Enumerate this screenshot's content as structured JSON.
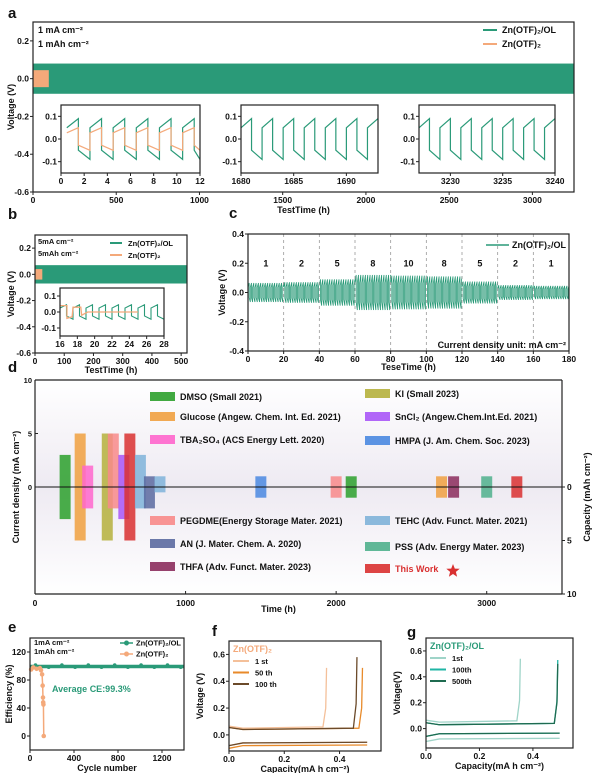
{
  "chart_data": [
    {
      "id": "a",
      "type": "line",
      "panel_label": "a",
      "annotations": [
        "1 mA cm⁻²",
        "1 mAh cm⁻²"
      ],
      "xlabel": "TestTime (h)",
      "ylabel": "Voltage (V)",
      "xlim": [
        0,
        3250
      ],
      "ylim": [
        -0.6,
        0.3
      ],
      "xticks": [
        0,
        500,
        1000,
        1500,
        2000,
        2500,
        3000
      ],
      "yticks": [
        -0.6,
        -0.4,
        -0.2,
        0.0,
        0.2
      ],
      "legend": {
        "position": "top-right",
        "entries": [
          {
            "name": "Zn(OTF)₂/OL",
            "color": "#2a9a78"
          },
          {
            "name": "Zn(OTF)₂",
            "color": "#f4a97a"
          }
        ]
      },
      "series": [
        {
          "name": "Zn(OTF)₂/OL",
          "color": "#2a9a78",
          "x_range": [
            0,
            3250
          ],
          "band_upper": 0.08,
          "band_lower": -0.08
        },
        {
          "name": "Zn(OTF)₂",
          "color": "#f4a97a",
          "x_range": [
            0,
            95
          ],
          "band_upper": 0.045,
          "band_lower": -0.045
        }
      ],
      "insets": [
        {
          "xlim": [
            0,
            12
          ],
          "ylim": [
            -0.15,
            0.15
          ],
          "xticks": [
            0,
            2,
            4,
            6,
            8,
            10,
            12
          ],
          "yticks": [
            -0.1,
            0.0,
            0.1
          ],
          "series": [
            "Zn(OTF)₂/OL",
            "Zn(OTF)₂"
          ]
        },
        {
          "xlim": [
            1680,
            1693
          ],
          "ylim": [
            -0.15,
            0.15
          ],
          "xticks": [
            1680,
            1685,
            1690
          ],
          "yticks": [
            -0.1,
            0.0,
            0.1
          ],
          "series": [
            "Zn(OTF)₂/OL"
          ]
        },
        {
          "xlim": [
            3227,
            3240
          ],
          "ylim": [
            -0.15,
            0.15
          ],
          "xticks": [
            3230,
            3235,
            3240
          ],
          "yticks": [
            -0.1,
            0.0,
            0.1
          ],
          "series": [
            "Zn(OTF)₂/OL"
          ]
        }
      ]
    },
    {
      "id": "b",
      "type": "line",
      "panel_label": "b",
      "annotations": [
        "5mA cm⁻²",
        "5mAh cm⁻²"
      ],
      "xlabel": "TestTime (h)",
      "ylabel": "Voltage (V)",
      "xlim": [
        0,
        520
      ],
      "ylim": [
        -0.6,
        0.3
      ],
      "xticks": [
        0,
        100,
        200,
        300,
        400,
        500
      ],
      "yticks": [
        -0.6,
        -0.4,
        -0.2,
        0.0,
        0.2
      ],
      "legend": {
        "position": "top-right",
        "entries": [
          {
            "name": "Zn(OTF)₂/OL",
            "color": "#2a9a78"
          },
          {
            "name": "Zn(OTF)₂",
            "color": "#f4a97a"
          }
        ]
      },
      "series": [
        {
          "name": "Zn(OTF)₂/OL",
          "color": "#2a9a78",
          "x_range": [
            0,
            520
          ],
          "band_upper": 0.07,
          "band_lower": -0.07
        },
        {
          "name": "Zn(OTF)₂",
          "color": "#f4a97a",
          "x_range": [
            0,
            25
          ],
          "band_upper": 0.04,
          "band_lower": -0.04
        }
      ],
      "insets": [
        {
          "xlim": [
            16,
            28
          ],
          "ylim": [
            -0.15,
            0.15
          ],
          "xticks": [
            16,
            18,
            20,
            22,
            24,
            26,
            28
          ],
          "yticks": [
            -0.1,
            0.0,
            0.1
          ],
          "series": [
            "Zn(OTF)₂/OL",
            "Zn(OTF)₂"
          ]
        }
      ]
    },
    {
      "id": "c",
      "type": "line",
      "panel_label": "c",
      "xlabel": "TeseTime (h)",
      "ylabel": "Voltage (V)",
      "xlim": [
        0,
        180
      ],
      "ylim": [
        -0.4,
        0.4
      ],
      "xticks": [
        0,
        20,
        40,
        60,
        80,
        100,
        120,
        140,
        160,
        180
      ],
      "yticks": [
        -0.4,
        -0.2,
        0.0,
        0.2,
        0.4
      ],
      "legend": {
        "position": "top-right",
        "entries": [
          {
            "name": "Zn(OTF)₂/OL",
            "color": "#2a9a78"
          }
        ]
      },
      "annotation": "Current density unit: mA cm⁻²",
      "segments": [
        {
          "x_range": [
            0,
            20
          ],
          "current_density": "1",
          "amplitude": 0.065
        },
        {
          "x_range": [
            20,
            40
          ],
          "current_density": "2",
          "amplitude": 0.07
        },
        {
          "x_range": [
            40,
            60
          ],
          "current_density": "5",
          "amplitude": 0.09
        },
        {
          "x_range": [
            60,
            80
          ],
          "current_density": "8",
          "amplitude": 0.12
        },
        {
          "x_range": [
            80,
            100
          ],
          "current_density": "10",
          "amplitude": 0.115
        },
        {
          "x_range": [
            100,
            120
          ],
          "current_density": "8",
          "amplitude": 0.11
        },
        {
          "x_range": [
            120,
            140
          ],
          "current_density": "5",
          "amplitude": 0.075
        },
        {
          "x_range": [
            140,
            160
          ],
          "current_density": "2",
          "amplitude": 0.05
        },
        {
          "x_range": [
            160,
            180
          ],
          "current_density": "1",
          "amplitude": 0.045
        }
      ]
    },
    {
      "id": "d",
      "type": "bar",
      "panel_label": "d",
      "xlabel": "Time (h)",
      "ylabel": "Current density (mA cm⁻²)",
      "ylabel_right": "Capacity (mAh cm⁻²)",
      "xlim": [
        0,
        3500
      ],
      "xticks": [
        0,
        1000,
        2000,
        3000
      ],
      "ylim_left": [
        -10,
        10
      ],
      "yticks_left": [
        0,
        5,
        10
      ],
      "yticks_right": [
        0,
        5,
        10
      ],
      "note": "Bars extend upward by current density (left axis) and downward by areal capacity (right axis)",
      "legend": [
        {
          "name": "DMSO (Small 2021)",
          "color": "#2ca02c"
        },
        {
          "name": "Glucose (Angew. Chem. Int. Ed. 2021)",
          "color": "#f0a040"
        },
        {
          "name": "TBA₂SO₄ (ACS Energy Lett. 2020)",
          "color": "#ff66cc"
        },
        {
          "name": "KI (Small 2023)",
          "color": "#b5b03c"
        },
        {
          "name": "SnCl₂ (Angew.Chem.Int.Ed. 2021)",
          "color": "#a855f7"
        },
        {
          "name": "HMPA (J. Am. Chem. Soc. 2023)",
          "color": "#4a88e0"
        },
        {
          "name": "PEGDME(Energy Storage Mater. 2021)",
          "color": "#f88a8a"
        },
        {
          "name": "AN (J. Mater. Chem. A. 2020)",
          "color": "#5b6aa0"
        },
        {
          "name": "THFA (Adv. Funct. Mater. 2023)",
          "color": "#8b2c5c"
        },
        {
          "name": "TEHC (Adv. Funct. Mater. 2021)",
          "color": "#7fb3d9"
        },
        {
          "name": "PSS (Adv. Energy Mater. 2023)",
          "color": "#4fb08c"
        },
        {
          "name": "This Work",
          "color": "#d93030"
        }
      ],
      "bars": [
        {
          "name": "DMSO",
          "time": 200,
          "current": 3,
          "capacity": 3
        },
        {
          "name": "Glucose",
          "time": 300,
          "current": 5,
          "capacity": 5
        },
        {
          "name": "TBA₂SO₄",
          "time": 350,
          "current": 2,
          "capacity": 2
        },
        {
          "name": "KI",
          "time": 480,
          "current": 5,
          "capacity": 5
        },
        {
          "name": "PEGDME",
          "time": 520,
          "current": 5,
          "capacity": 2
        },
        {
          "name": "SnCl₂",
          "time": 590,
          "current": 3,
          "capacity": 3
        },
        {
          "name": "This Work (short)",
          "time": 630,
          "current": 5,
          "capacity": 5
        },
        {
          "name": "TEHC",
          "time": 700,
          "current": 3,
          "capacity": 2
        },
        {
          "name": "AN",
          "time": 760,
          "current": 1,
          "capacity": 2
        },
        {
          "name": "TEHC (long)",
          "time": 830,
          "current": 1,
          "capacity": 0.5
        },
        {
          "name": "HMPA",
          "time": 1500,
          "current": 1,
          "capacity": 1
        },
        {
          "name": "PEGDME (long)",
          "time": 2000,
          "current": 1,
          "capacity": 1
        },
        {
          "name": "DMSO (long)",
          "time": 2100,
          "current": 1,
          "capacity": 1
        },
        {
          "name": "Glucose (long)",
          "time": 2700,
          "current": 1,
          "capacity": 1
        },
        {
          "name": "THFA",
          "time": 2780,
          "current": 1,
          "capacity": 1
        },
        {
          "name": "PSS",
          "time": 3000,
          "current": 1,
          "capacity": 1
        },
        {
          "name": "This Work",
          "time": 3200,
          "current": 1,
          "capacity": 1
        }
      ]
    },
    {
      "id": "e",
      "type": "scatter",
      "panel_label": "e",
      "annotations": [
        "1mA cm⁻²",
        "1mAh cm⁻²"
      ],
      "text_annotation": "Average CE:99.3%",
      "xlabel": "Cycle number",
      "ylabel": "Efficiency (%)",
      "xlim": [
        0,
        1400
      ],
      "ylim": [
        -20,
        140
      ],
      "xticks": [
        0,
        400,
        800,
        1200
      ],
      "yticks": [
        0,
        40,
        80,
        120
      ],
      "legend": {
        "position": "top-right",
        "entries": [
          {
            "name": "Zn(OTF)₂/OL",
            "color": "#2a9a78"
          },
          {
            "name": "Zn(OTF)₂",
            "color": "#f4a97a"
          }
        ]
      },
      "series": [
        {
          "name": "Zn(OTF)₂/OL",
          "color": "#2a9a78",
          "x_range": [
            0,
            1400
          ],
          "y": 99.3
        },
        {
          "name": "Zn(OTF)₂",
          "color": "#f4a97a",
          "points": [
            [
              10,
              95
            ],
            [
              30,
              98
            ],
            [
              60,
              96
            ],
            [
              90,
              97
            ],
            [
              100,
              94
            ],
            [
              110,
              88
            ],
            [
              115,
              72
            ],
            [
              118,
              55
            ],
            [
              120,
              48
            ],
            [
              122,
              45
            ],
            [
              125,
              0
            ]
          ]
        }
      ]
    },
    {
      "id": "f",
      "type": "line",
      "panel_label": "f",
      "title": "Zn(OTF)₂",
      "xlabel": "Capacity(mA h cm⁻²)",
      "ylabel": "Voltage (V)",
      "xlim": [
        0,
        0.55
      ],
      "ylim": [
        -0.12,
        0.7
      ],
      "xticks": [
        0.0,
        0.2,
        0.4
      ],
      "yticks": [
        0.0,
        0.2,
        0.4,
        0.6
      ],
      "legend": {
        "position": "top-left",
        "entries": [
          {
            "name": "1 st",
            "color": "#f4c09a"
          },
          {
            "name": "50 th",
            "color": "#e88a2a"
          },
          {
            "name": "100 th",
            "color": "#6b4a2a"
          }
        ]
      },
      "series": [
        {
          "name": "1 st",
          "color": "#f4c09a",
          "charge_end": 0.35,
          "peak": 0.5,
          "plateau": 0.05,
          "discharge": -0.06
        },
        {
          "name": "50 th",
          "color": "#e88a2a",
          "charge_end": 0.48,
          "peak": 0.5,
          "plateau": 0.04,
          "discharge": -0.08
        },
        {
          "name": "100 th",
          "color": "#6b4a2a",
          "charge_end": 0.46,
          "peak": 0.58,
          "plateau": 0.04,
          "discharge": -0.06
        }
      ]
    },
    {
      "id": "g",
      "type": "line",
      "panel_label": "g",
      "title": "Zn(OTF)₂/OL",
      "xlabel": "Capacity(mA h cm⁻²)",
      "ylabel": "Voltage(V)",
      "xlim": [
        0,
        0.55
      ],
      "ylim": [
        -0.15,
        0.7
      ],
      "xticks": [
        0.0,
        0.2,
        0.4
      ],
      "yticks": [
        0.0,
        0.2,
        0.4,
        0.6
      ],
      "legend": {
        "position": "top-left",
        "entries": [
          {
            "name": "1st",
            "color": "#9fd4c8"
          },
          {
            "name": "100th",
            "color": "#1fb5a5"
          },
          {
            "name": "500th",
            "color": "#1f6b50"
          }
        ]
      },
      "series": [
        {
          "name": "1st",
          "color": "#9fd4c8",
          "charge_end": 0.35,
          "peak": 0.54,
          "plateau": 0.05,
          "discharge": -0.08
        },
        {
          "name": "100th",
          "color": "#1fb5a5",
          "charge_end": 0.49,
          "peak": 0.53,
          "plateau": 0.03,
          "discharge": -0.04
        },
        {
          "name": "500th",
          "color": "#1f6b50",
          "charge_end": 0.49,
          "peak": 0.5,
          "plateau": 0.03,
          "discharge": -0.04
        }
      ]
    }
  ]
}
